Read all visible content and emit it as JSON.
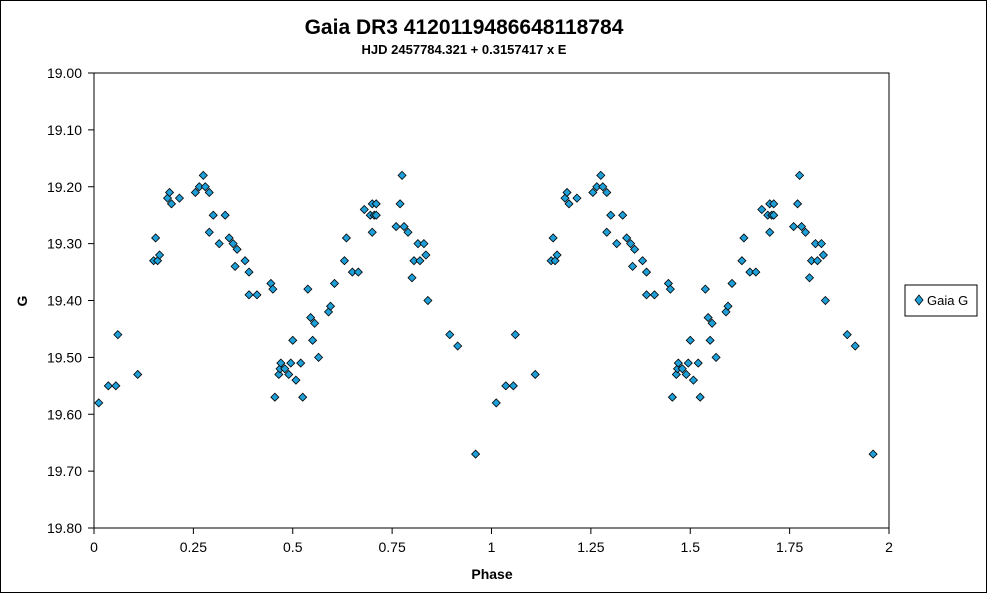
{
  "chart_data": {
    "type": "scatter",
    "title": "Gaia DR3 4120119486648118784",
    "subtitle": "HJD 2457784.321 + 0.3157417 x E",
    "xlabel": "Phase",
    "ylabel": "G",
    "xlim": [
      0,
      2
    ],
    "ylim": [
      19.8,
      19.0
    ],
    "y_inverted": true,
    "x_ticks": [
      "0",
      "0.25",
      "0.5",
      "0.75",
      "1",
      "1.25",
      "1.5",
      "1.75",
      "2"
    ],
    "x_tick_values": [
      0,
      0.25,
      0.5,
      0.75,
      1,
      1.25,
      1.5,
      1.75,
      2
    ],
    "y_ticks": [
      "19.00",
      "19.10",
      "19.20",
      "19.30",
      "19.40",
      "19.50",
      "19.60",
      "19.70",
      "19.80"
    ],
    "y_tick_values": [
      19.0,
      19.1,
      19.2,
      19.3,
      19.4,
      19.5,
      19.6,
      19.7,
      19.8
    ],
    "grid": false,
    "legend_position": "right",
    "marker": "diamond",
    "marker_color": "#1f9fd8",
    "series": [
      {
        "name": "Gaia G",
        "points": [
          [
            0.012,
            19.58
          ],
          [
            0.036,
            19.55
          ],
          [
            0.055,
            19.55
          ],
          [
            0.06,
            19.46
          ],
          [
            0.11,
            19.53
          ],
          [
            0.15,
            19.33
          ],
          [
            0.155,
            19.29
          ],
          [
            0.16,
            19.33
          ],
          [
            0.165,
            19.32
          ],
          [
            0.185,
            19.22
          ],
          [
            0.19,
            19.21
          ],
          [
            0.195,
            19.23
          ],
          [
            0.215,
            19.22
          ],
          [
            0.255,
            19.21
          ],
          [
            0.265,
            19.2
          ],
          [
            0.275,
            19.18
          ],
          [
            0.28,
            19.2
          ],
          [
            0.29,
            19.28
          ],
          [
            0.29,
            19.21
          ],
          [
            0.3,
            19.25
          ],
          [
            0.315,
            19.3
          ],
          [
            0.33,
            19.25
          ],
          [
            0.34,
            19.29
          ],
          [
            0.35,
            19.3
          ],
          [
            0.355,
            19.34
          ],
          [
            0.36,
            19.31
          ],
          [
            0.38,
            19.33
          ],
          [
            0.39,
            19.39
          ],
          [
            0.39,
            19.35
          ],
          [
            0.41,
            19.39
          ],
          [
            0.445,
            19.37
          ],
          [
            0.45,
            19.38
          ],
          [
            0.455,
            19.57
          ],
          [
            0.465,
            19.53
          ],
          [
            0.468,
            19.52
          ],
          [
            0.47,
            19.51
          ],
          [
            0.48,
            19.52
          ],
          [
            0.49,
            19.53
          ],
          [
            0.495,
            19.51
          ],
          [
            0.5,
            19.47
          ],
          [
            0.508,
            19.54
          ],
          [
            0.52,
            19.51
          ],
          [
            0.525,
            19.57
          ],
          [
            0.538,
            19.38
          ],
          [
            0.545,
            19.43
          ],
          [
            0.55,
            19.47
          ],
          [
            0.555,
            19.44
          ],
          [
            0.565,
            19.5
          ],
          [
            0.59,
            19.42
          ],
          [
            0.595,
            19.41
          ],
          [
            0.605,
            19.37
          ],
          [
            0.63,
            19.33
          ],
          [
            0.635,
            19.29
          ],
          [
            0.65,
            19.35
          ],
          [
            0.665,
            19.35
          ],
          [
            0.68,
            19.24
          ],
          [
            0.695,
            19.25
          ],
          [
            0.7,
            19.23
          ],
          [
            0.7,
            19.28
          ],
          [
            0.705,
            19.25
          ],
          [
            0.71,
            19.23
          ],
          [
            0.71,
            19.25
          ],
          [
            0.76,
            19.27
          ],
          [
            0.77,
            19.23
          ],
          [
            0.775,
            19.18
          ],
          [
            0.78,
            19.27
          ],
          [
            0.79,
            19.28
          ],
          [
            0.8,
            19.36
          ],
          [
            0.805,
            19.33
          ],
          [
            0.815,
            19.3
          ],
          [
            0.82,
            19.33
          ],
          [
            0.83,
            19.3
          ],
          [
            0.835,
            19.32
          ],
          [
            0.84,
            19.4
          ],
          [
            0.895,
            19.46
          ],
          [
            0.915,
            19.48
          ],
          [
            0.96,
            19.67
          ]
        ]
      }
    ]
  }
}
